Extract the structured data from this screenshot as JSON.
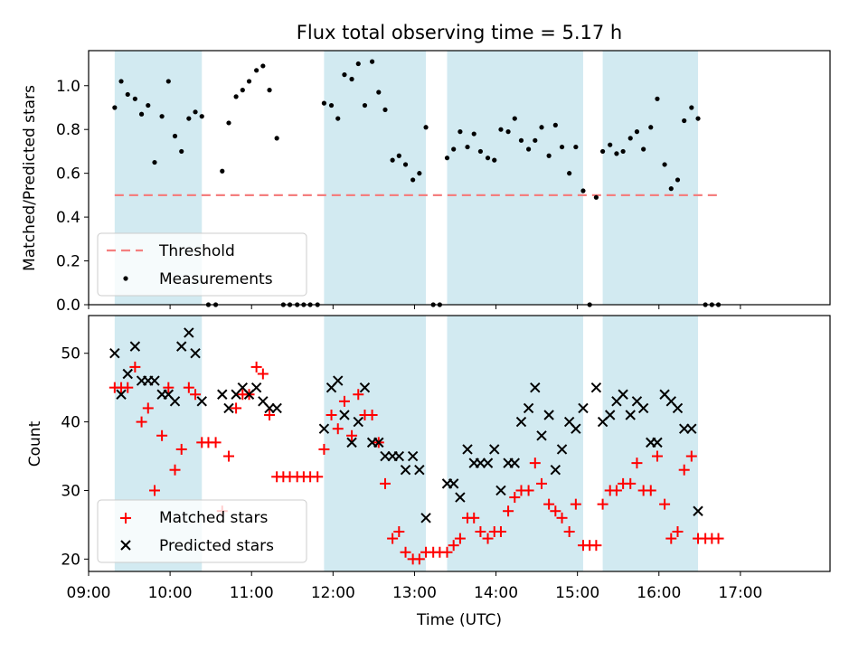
{
  "title": "Flux total observing time = 5.17 h",
  "chart_data": [
    {
      "type": "scatter",
      "ylabel": "Matched/Predicted stars",
      "ylim": [
        0,
        1.16
      ],
      "xlim": [
        9.0,
        18.1
      ],
      "yticks": [
        "0.0",
        "0.2",
        "0.4",
        "0.6",
        "0.8",
        "1.0"
      ],
      "threshold": {
        "value": 0.5,
        "x": [
          9.32,
          16.73
        ],
        "color": "#f47f7f"
      },
      "shaded_color": "#add8e6",
      "shaded_intervals": [
        [
          9.32,
          10.39
        ],
        [
          11.89,
          13.14
        ],
        [
          13.4,
          15.07
        ],
        [
          15.31,
          16.48
        ]
      ],
      "legend": {
        "placement": "lower-left",
        "entries": [
          "Threshold",
          "Measurements"
        ]
      },
      "series": [
        {
          "name": "Measurements",
          "color": "#000000",
          "points": [
            [
              9.32,
              0.9
            ],
            [
              9.4,
              1.02
            ],
            [
              9.48,
              0.96
            ],
            [
              9.57,
              0.94
            ],
            [
              9.65,
              0.87
            ],
            [
              9.73,
              0.91
            ],
            [
              9.81,
              0.65
            ],
            [
              9.9,
              0.86
            ],
            [
              9.98,
              1.02
            ],
            [
              10.06,
              0.77
            ],
            [
              10.14,
              0.7
            ],
            [
              10.23,
              0.85
            ],
            [
              10.31,
              0.88
            ],
            [
              10.39,
              0.86
            ],
            [
              10.47,
              0.0
            ],
            [
              10.56,
              0.0
            ],
            [
              10.64,
              0.61
            ],
            [
              10.72,
              0.83
            ],
            [
              10.81,
              0.95
            ],
            [
              10.89,
              0.98
            ],
            [
              10.97,
              1.02
            ],
            [
              11.06,
              1.07
            ],
            [
              11.14,
              1.09
            ],
            [
              11.22,
              0.98
            ],
            [
              11.31,
              0.76
            ],
            [
              11.39,
              0.0
            ],
            [
              11.47,
              0.0
            ],
            [
              11.56,
              0.0
            ],
            [
              11.64,
              0.0
            ],
            [
              11.72,
              0.0
            ],
            [
              11.81,
              0.0
            ],
            [
              11.89,
              0.92
            ],
            [
              11.98,
              0.91
            ],
            [
              12.06,
              0.85
            ],
            [
              12.14,
              1.05
            ],
            [
              12.23,
              1.03
            ],
            [
              12.31,
              1.1
            ],
            [
              12.39,
              0.91
            ],
            [
              12.48,
              1.11
            ],
            [
              12.56,
              0.97
            ],
            [
              12.64,
              0.89
            ],
            [
              12.73,
              0.66
            ],
            [
              12.81,
              0.68
            ],
            [
              12.89,
              0.64
            ],
            [
              12.98,
              0.57
            ],
            [
              13.06,
              0.6
            ],
            [
              13.14,
              0.81
            ],
            [
              13.23,
              0.0
            ],
            [
              13.31,
              0.0
            ],
            [
              13.4,
              0.67
            ],
            [
              13.48,
              0.71
            ],
            [
              13.56,
              0.79
            ],
            [
              13.65,
              0.72
            ],
            [
              13.73,
              0.78
            ],
            [
              13.81,
              0.7
            ],
            [
              13.9,
              0.67
            ],
            [
              13.98,
              0.66
            ],
            [
              14.06,
              0.8
            ],
            [
              14.15,
              0.79
            ],
            [
              14.23,
              0.85
            ],
            [
              14.31,
              0.75
            ],
            [
              14.4,
              0.71
            ],
            [
              14.48,
              0.75
            ],
            [
              14.56,
              0.81
            ],
            [
              14.65,
              0.68
            ],
            [
              14.73,
              0.82
            ],
            [
              14.81,
              0.72
            ],
            [
              14.9,
              0.6
            ],
            [
              14.98,
              0.72
            ],
            [
              15.07,
              0.52
            ],
            [
              15.15,
              0.0
            ],
            [
              15.23,
              0.49
            ],
            [
              15.31,
              0.7
            ],
            [
              15.4,
              0.73
            ],
            [
              15.48,
              0.69
            ],
            [
              15.56,
              0.7
            ],
            [
              15.65,
              0.76
            ],
            [
              15.73,
              0.79
            ],
            [
              15.81,
              0.71
            ],
            [
              15.9,
              0.81
            ],
            [
              15.98,
              0.94
            ],
            [
              16.07,
              0.64
            ],
            [
              16.15,
              0.53
            ],
            [
              16.23,
              0.57
            ],
            [
              16.31,
              0.84
            ],
            [
              16.4,
              0.9
            ],
            [
              16.48,
              0.85
            ],
            [
              16.57,
              0.0
            ],
            [
              16.65,
              0.0
            ],
            [
              16.73,
              0.0
            ]
          ]
        }
      ]
    },
    {
      "type": "scatter",
      "ylabel": "Count",
      "xlabel": "Time (UTC)",
      "ylim": [
        18.2,
        55.5
      ],
      "xlim": [
        9.0,
        18.1
      ],
      "yticks": [
        "20",
        "30",
        "40",
        "50"
      ],
      "xticks": [
        "09:00",
        "10:00",
        "11:00",
        "12:00",
        "13:00",
        "14:00",
        "15:00",
        "16:00",
        "17:00"
      ],
      "shaded_color": "#add8e6",
      "shaded_intervals": [
        [
          9.32,
          10.39
        ],
        [
          11.89,
          13.14
        ],
        [
          13.4,
          15.07
        ],
        [
          15.31,
          16.48
        ]
      ],
      "legend": {
        "placement": "lower-left",
        "entries": [
          "Matched stars",
          "Predicted stars"
        ]
      },
      "series": [
        {
          "name": "Matched stars",
          "marker": "plus",
          "color": "#ff0000",
          "points": [
            [
              9.32,
              45
            ],
            [
              9.4,
              45
            ],
            [
              9.48,
              45
            ],
            [
              9.57,
              48
            ],
            [
              9.65,
              40
            ],
            [
              9.73,
              42
            ],
            [
              9.81,
              30
            ],
            [
              9.9,
              38
            ],
            [
              9.98,
              45
            ],
            [
              10.06,
              33
            ],
            [
              10.14,
              36
            ],
            [
              10.23,
              45
            ],
            [
              10.31,
              44
            ],
            [
              10.39,
              37
            ],
            [
              10.47,
              37
            ],
            [
              10.56,
              37
            ],
            [
              10.64,
              27
            ],
            [
              10.72,
              35
            ],
            [
              10.81,
              42
            ],
            [
              10.89,
              44
            ],
            [
              10.97,
              44
            ],
            [
              11.06,
              48
            ],
            [
              11.14,
              47
            ],
            [
              11.22,
              41
            ],
            [
              11.31,
              32
            ],
            [
              11.39,
              32
            ],
            [
              11.47,
              32
            ],
            [
              11.56,
              32
            ],
            [
              11.64,
              32
            ],
            [
              11.72,
              32
            ],
            [
              11.81,
              32
            ],
            [
              11.89,
              36
            ],
            [
              11.98,
              41
            ],
            [
              12.06,
              39
            ],
            [
              12.14,
              43
            ],
            [
              12.23,
              38
            ],
            [
              12.31,
              44
            ],
            [
              12.39,
              41
            ],
            [
              12.48,
              41
            ],
            [
              12.56,
              37
            ],
            [
              12.64,
              31
            ],
            [
              12.73,
              23
            ],
            [
              12.81,
              24
            ],
            [
              12.89,
              21
            ],
            [
              12.98,
              20
            ],
            [
              13.06,
              20
            ],
            [
              13.14,
              21
            ],
            [
              13.23,
              21
            ],
            [
              13.31,
              21
            ],
            [
              13.4,
              21
            ],
            [
              13.48,
              22
            ],
            [
              13.56,
              23
            ],
            [
              13.65,
              26
            ],
            [
              13.73,
              26
            ],
            [
              13.81,
              24
            ],
            [
              13.9,
              23
            ],
            [
              13.98,
              24
            ],
            [
              14.06,
              24
            ],
            [
              14.15,
              27
            ],
            [
              14.23,
              29
            ],
            [
              14.31,
              30
            ],
            [
              14.4,
              30
            ],
            [
              14.48,
              34
            ],
            [
              14.56,
              31
            ],
            [
              14.65,
              28
            ],
            [
              14.73,
              27
            ],
            [
              14.81,
              26
            ],
            [
              14.9,
              24
            ],
            [
              14.98,
              28
            ],
            [
              15.07,
              22
            ],
            [
              15.15,
              22
            ],
            [
              15.23,
              22
            ],
            [
              15.31,
              28
            ],
            [
              15.4,
              30
            ],
            [
              15.48,
              30
            ],
            [
              15.56,
              31
            ],
            [
              15.65,
              31
            ],
            [
              15.73,
              34
            ],
            [
              15.81,
              30
            ],
            [
              15.9,
              30
            ],
            [
              15.98,
              35
            ],
            [
              16.07,
              28
            ],
            [
              16.15,
              23
            ],
            [
              16.23,
              24
            ],
            [
              16.31,
              33
            ],
            [
              16.4,
              35
            ],
            [
              16.48,
              23
            ],
            [
              16.57,
              23
            ],
            [
              16.65,
              23
            ],
            [
              16.73,
              23
            ]
          ]
        },
        {
          "name": "Predicted stars",
          "marker": "x",
          "color": "#000000",
          "points": [
            [
              9.32,
              50
            ],
            [
              9.4,
              44
            ],
            [
              9.48,
              47
            ],
            [
              9.57,
              51
            ],
            [
              9.65,
              46
            ],
            [
              9.73,
              46
            ],
            [
              9.81,
              46
            ],
            [
              9.9,
              44
            ],
            [
              9.98,
              44
            ],
            [
              10.06,
              43
            ],
            [
              10.14,
              51
            ],
            [
              10.23,
              53
            ],
            [
              10.31,
              50
            ],
            [
              10.39,
              43
            ],
            [
              10.64,
              44
            ],
            [
              10.72,
              42
            ],
            [
              10.81,
              44
            ],
            [
              10.89,
              45
            ],
            [
              10.97,
              44
            ],
            [
              11.06,
              45
            ],
            [
              11.14,
              43
            ],
            [
              11.22,
              42
            ],
            [
              11.31,
              42
            ],
            [
              11.89,
              39
            ],
            [
              11.98,
              45
            ],
            [
              12.06,
              46
            ],
            [
              12.14,
              41
            ],
            [
              12.23,
              37
            ],
            [
              12.31,
              40
            ],
            [
              12.39,
              45
            ],
            [
              12.48,
              37
            ],
            [
              12.56,
              37
            ],
            [
              12.64,
              35
            ],
            [
              12.73,
              35
            ],
            [
              12.81,
              35
            ],
            [
              12.89,
              33
            ],
            [
              12.98,
              35
            ],
            [
              13.06,
              33
            ],
            [
              13.14,
              26
            ],
            [
              13.4,
              31
            ],
            [
              13.48,
              31
            ],
            [
              13.56,
              29
            ],
            [
              13.65,
              36
            ],
            [
              13.73,
              34
            ],
            [
              13.81,
              34
            ],
            [
              13.9,
              34
            ],
            [
              13.98,
              36
            ],
            [
              14.06,
              30
            ],
            [
              14.15,
              34
            ],
            [
              14.23,
              34
            ],
            [
              14.31,
              40
            ],
            [
              14.4,
              42
            ],
            [
              14.48,
              45
            ],
            [
              14.56,
              38
            ],
            [
              14.65,
              41
            ],
            [
              14.73,
              33
            ],
            [
              14.81,
              36
            ],
            [
              14.9,
              40
            ],
            [
              14.98,
              39
            ],
            [
              15.07,
              42
            ],
            [
              15.23,
              45
            ],
            [
              15.31,
              40
            ],
            [
              15.4,
              41
            ],
            [
              15.48,
              43
            ],
            [
              15.56,
              44
            ],
            [
              15.65,
              41
            ],
            [
              15.73,
              43
            ],
            [
              15.81,
              42
            ],
            [
              15.9,
              37
            ],
            [
              15.98,
              37
            ],
            [
              16.07,
              44
            ],
            [
              16.15,
              43
            ],
            [
              16.23,
              42
            ],
            [
              16.31,
              39
            ],
            [
              16.4,
              39
            ],
            [
              16.48,
              27
            ]
          ]
        }
      ]
    }
  ]
}
